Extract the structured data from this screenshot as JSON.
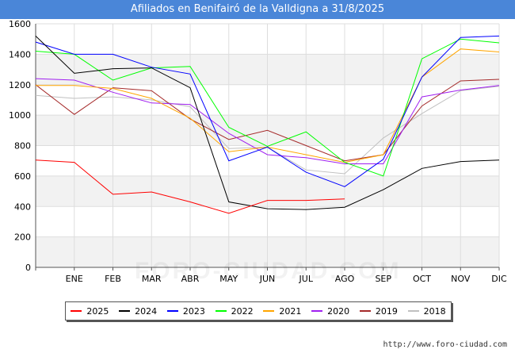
{
  "page": {
    "title": "Afiliados en Benifairó de la Valldigna a 31/8/2025",
    "footer": "http://www.foro-ciudad.com",
    "watermark": "FORO-CIUDAD.COM"
  },
  "chart_data": {
    "type": "line",
    "title": "Afiliados en Benifairó de la Valldigna a 31/8/2025",
    "categories": [
      "",
      "ENE",
      "FEB",
      "MAR",
      "ABR",
      "MAY",
      "JUN",
      "JUL",
      "AGO",
      "SEP",
      "OCT",
      "NOV",
      "DIC"
    ],
    "ylim": [
      0,
      1600
    ],
    "yticks": [
      0,
      200,
      400,
      600,
      800,
      1000,
      1200,
      1400,
      1600
    ],
    "grid": true,
    "legend_position": "bottom",
    "series": [
      {
        "name": "2025",
        "color": "#ff0000",
        "values": [
          705,
          690,
          480,
          495,
          430,
          355,
          440,
          440,
          450,
          null,
          null,
          null,
          null
        ]
      },
      {
        "name": "2024",
        "color": "#000000",
        "values": [
          1520,
          1275,
          1305,
          1310,
          1180,
          430,
          385,
          380,
          395,
          510,
          650,
          695,
          705
        ]
      },
      {
        "name": "2023",
        "color": "#0000ff",
        "values": [
          1480,
          1400,
          1400,
          1315,
          1270,
          700,
          790,
          625,
          530,
          710,
          1250,
          1510,
          1520
        ]
      },
      {
        "name": "2022",
        "color": "#00ff00",
        "values": [
          1420,
          1400,
          1230,
          1310,
          1320,
          920,
          795,
          890,
          690,
          600,
          1370,
          1500,
          1475
        ]
      },
      {
        "name": "2021",
        "color": "#ffa500",
        "values": [
          1195,
          1195,
          1175,
          1110,
          980,
          760,
          790,
          740,
          690,
          740,
          1250,
          1435,
          1415
        ]
      },
      {
        "name": "2020",
        "color": "#a020f0",
        "values": [
          1240,
          1230,
          1150,
          1080,
          1070,
          880,
          740,
          720,
          680,
          680,
          1120,
          1165,
          1195
        ]
      },
      {
        "name": "2019",
        "color": "#a52a2a",
        "values": [
          1200,
          1005,
          1180,
          1160,
          975,
          840,
          900,
          800,
          700,
          740,
          1060,
          1225,
          1235
        ]
      },
      {
        "name": "2018",
        "color": "#c0c0c0",
        "values": [
          1130,
          1110,
          1120,
          1100,
          1055,
          780,
          790,
          640,
          615,
          850,
          1010,
          1160,
          1190
        ]
      }
    ]
  }
}
